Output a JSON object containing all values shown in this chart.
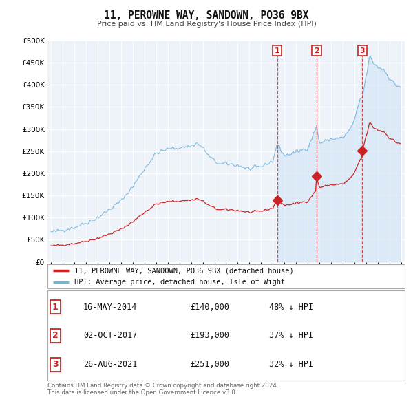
{
  "title": "11, PEROWNE WAY, SANDOWN, PO36 9BX",
  "subtitle": "Price paid vs. HM Land Registry's House Price Index (HPI)",
  "hpi_color": "#74b3d8",
  "price_color": "#cc2222",
  "marker_color": "#cc2222",
  "background_color": "#ffffff",
  "plot_bg_color": "#eef3fa",
  "grid_color": "#ffffff",
  "shade_color": "#cce0f5",
  "ylim": [
    0,
    500000
  ],
  "yticks": [
    0,
    50000,
    100000,
    150000,
    200000,
    250000,
    300000,
    350000,
    400000,
    450000,
    500000
  ],
  "transactions": [
    {
      "label": "1",
      "date": "16-MAY-2014",
      "price": 140000,
      "hpi_pct": "48% ↓ HPI",
      "x": 2014.37
    },
    {
      "label": "2",
      "date": "02-OCT-2017",
      "price": 193000,
      "hpi_pct": "37% ↓ HPI",
      "x": 2017.75
    },
    {
      "label": "3",
      "date": "26-AUG-2021",
      "price": 251000,
      "hpi_pct": "32% ↓ HPI",
      "x": 2021.65
    }
  ],
  "legend_property_label": "11, PEROWNE WAY, SANDOWN, PO36 9BX (detached house)",
  "legend_hpi_label": "HPI: Average price, detached house, Isle of Wight",
  "footnote": "Contains HM Land Registry data © Crown copyright and database right 2024.\nThis data is licensed under the Open Government Licence v3.0."
}
